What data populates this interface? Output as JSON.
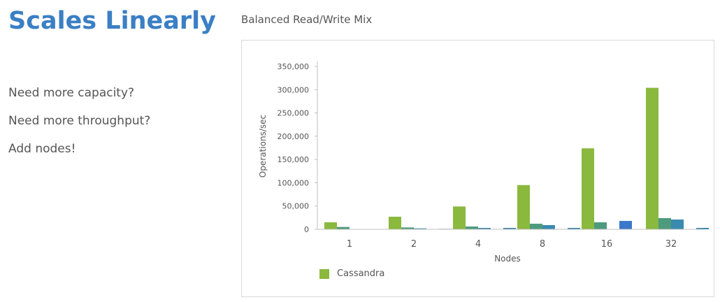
{
  "slide": {
    "title": "Scales Linearly",
    "bullets": [
      "Need more capacity?",
      "Need more throughput?",
      "Add nodes!"
    ]
  },
  "colors": {
    "title": "#3b7fc4",
    "cassandra": "#8ab93e",
    "series2": "#4e9a7d",
    "series3": "#3a8ab0",
    "series4": "#3a79c9",
    "series5": "#3a86a8"
  },
  "chart_data": {
    "type": "bar",
    "title": "Balanced Read/Write Mix",
    "xlabel": "Nodes",
    "ylabel": "Operations/sec",
    "categories": [
      "1",
      "2",
      "4",
      "8",
      "16",
      "32"
    ],
    "ylim": [
      0,
      350000
    ],
    "yticks": [
      0,
      50000,
      100000,
      150000,
      200000,
      250000,
      300000,
      350000
    ],
    "ytick_labels": [
      "0",
      "50,000",
      "100,000",
      "150,000",
      "200,000",
      "250,000",
      "300,000",
      "350,000"
    ],
    "grid": false,
    "legend_position": "bottom-left",
    "series": [
      {
        "name": "Cassandra",
        "values": [
          15000,
          27000,
          49000,
          95000,
          174000,
          304000
        ]
      },
      {
        "values": [
          5000,
          4000,
          6000,
          12000,
          15000,
          24000
        ]
      },
      {
        "values": [
          0,
          2000,
          3000,
          9000,
          0,
          21000
        ]
      },
      {
        "values": [
          0,
          0,
          0,
          0,
          18000,
          0
        ]
      },
      {
        "values": [
          0,
          1000,
          3000,
          3000,
          0,
          3000
        ]
      }
    ]
  }
}
